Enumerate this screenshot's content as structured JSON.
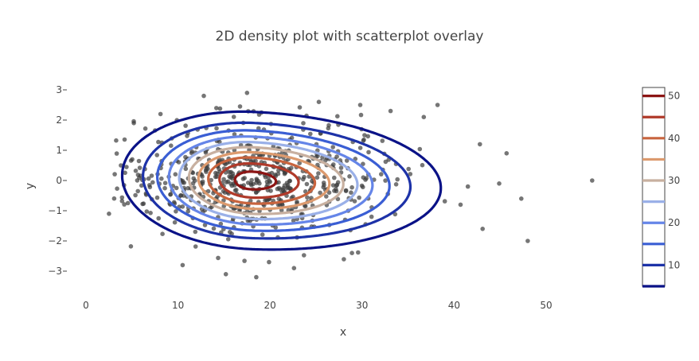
{
  "chart_data": {
    "type": "contour",
    "title": "2D density plot with scatterplot overlay",
    "xlabel": "x",
    "ylabel": "y",
    "xlim": [
      -2,
      57
    ],
    "ylim": [
      -3.8,
      3.3
    ],
    "x_ticks": [
      0,
      10,
      20,
      30,
      40,
      50
    ],
    "y_ticks": [
      3,
      2,
      1,
      0,
      -1,
      -2,
      -3
    ],
    "grid": false,
    "density": {
      "center_x": 18,
      "center_y": 0,
      "peak": 52
    },
    "contour_levels": [
      {
        "level": 5,
        "color": "#0a1287"
      },
      {
        "level": 10,
        "color": "#1d32a8"
      },
      {
        "level": 15,
        "color": "#3a5ed4"
      },
      {
        "level": 20,
        "color": "#6585e8"
      },
      {
        "level": 25,
        "color": "#9ab0e8"
      },
      {
        "level": 30,
        "color": "#c8b0a0"
      },
      {
        "level": 35,
        "color": "#dc9a6e"
      },
      {
        "level": 40,
        "color": "#c8643e"
      },
      {
        "level": 45,
        "color": "#b03a2a"
      },
      {
        "level": 50,
        "color": "#8c1514"
      }
    ],
    "colorbar": {
      "range": [
        5,
        52
      ],
      "tick_labels": [
        "50",
        "40",
        "30",
        "20",
        "10"
      ],
      "tick_values": [
        50,
        40,
        30,
        20,
        10
      ]
    },
    "scatter": {
      "color": "#3c3c3c",
      "outliers": [
        [
          55,
          0
        ],
        [
          48,
          -2
        ],
        [
          47.3,
          -0.6
        ],
        [
          45.7,
          0.9
        ],
        [
          44.9,
          -0.1
        ],
        [
          43.1,
          -1.6
        ],
        [
          42.8,
          1.2
        ],
        [
          38.2,
          2.5
        ],
        [
          40.7,
          -0.8
        ],
        [
          2.5,
          -1.1
        ],
        [
          15.2,
          -3.1
        ],
        [
          18.5,
          -3.2
        ],
        [
          10.5,
          -2.8
        ],
        [
          12.8,
          2.8
        ],
        [
          17.5,
          2.9
        ],
        [
          25.3,
          2.6
        ],
        [
          28.9,
          -2.4
        ],
        [
          36.7,
          2.1
        ],
        [
          3.8,
          0.5
        ],
        [
          22.6,
          -2.9
        ],
        [
          33.1,
          2.3
        ],
        [
          5.2,
          1.9
        ],
        [
          8.1,
          2.2
        ],
        [
          29.8,
          2.5
        ],
        [
          41.5,
          -0.2
        ]
      ],
      "cluster": {
        "count": 620,
        "sx": 6.6,
        "sy": 0.9,
        "skew": 0.25
      }
    }
  }
}
